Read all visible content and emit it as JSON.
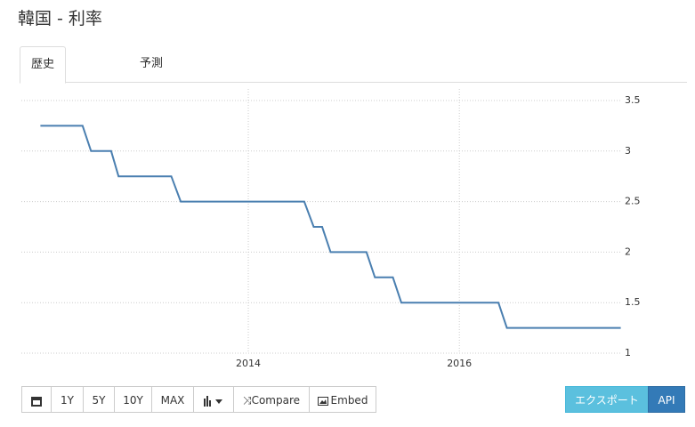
{
  "header": {
    "title": "韓国 - 利率"
  },
  "tabs": [
    "歴史",
    "予測"
  ],
  "chart_data": {
    "type": "line",
    "x": [
      2012.03,
      2012.43,
      2012.51,
      2012.7,
      2012.77,
      2013.27,
      2013.36,
      2014.53,
      2014.62,
      2014.7,
      2014.78,
      2015.12,
      2015.2,
      2015.37,
      2015.45,
      2016.37,
      2016.45,
      2017.53
    ],
    "values": [
      3.25,
      3.25,
      3,
      3,
      2.75,
      2.75,
      2.5,
      2.5,
      2.25,
      2.25,
      2,
      2,
      1.75,
      1.75,
      1.5,
      1.5,
      1.25,
      1.25
    ],
    "color": "#4a7fb0",
    "xlim": [
      2011.9,
      2017.55
    ],
    "xticks": [
      2014,
      2016
    ],
    "ylim": [
      1,
      3.5
    ],
    "yticks": [
      3.5,
      3,
      2.5,
      2,
      1.5,
      1
    ],
    "grid": true
  },
  "toolbar": {
    "buttons": [
      "1Y",
      "5Y",
      "10Y",
      "MAX",
      "Compare",
      "Embed"
    ],
    "export": "エクスポート",
    "api": "API"
  }
}
